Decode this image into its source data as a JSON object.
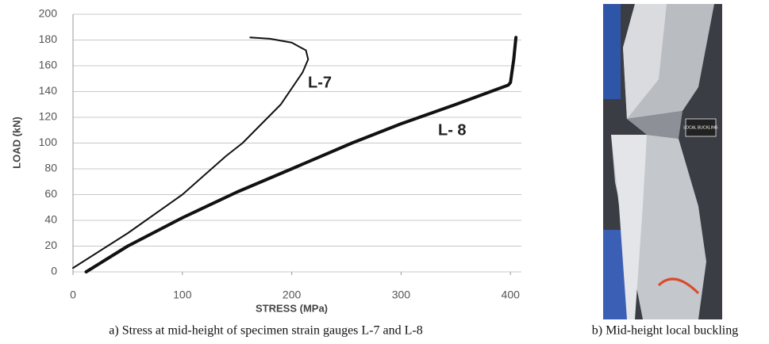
{
  "chart_data": {
    "type": "line",
    "x_label": "STRESS (MPa)",
    "y_label": "LOAD (kN)",
    "xlim": [
      0,
      410
    ],
    "xticks": [
      0,
      100,
      200,
      300,
      400
    ],
    "ylim": [
      0,
      200
    ],
    "yticks": [
      0,
      20,
      40,
      60,
      80,
      100,
      120,
      140,
      160,
      180,
      200
    ],
    "grid": true,
    "series": [
      {
        "name": "L-7",
        "color": "#111111",
        "width": 2,
        "x": [
          0,
          50,
          100,
          140,
          155,
          190,
          210,
          215,
          213,
          200,
          180,
          162
        ],
        "values": [
          3,
          30,
          60,
          90,
          100,
          130,
          155,
          165,
          172,
          178,
          181,
          182
        ]
      },
      {
        "name": "L- 8",
        "color": "#111111",
        "width": 4,
        "x": [
          12,
          50,
          100,
          150,
          200,
          255,
          300,
          350,
          398,
          400,
          403,
          405
        ],
        "values": [
          0,
          20,
          42,
          62,
          80,
          100,
          115,
          130,
          145,
          147,
          165,
          182
        ]
      }
    ]
  },
  "photo": {
    "label": "LOCAL BUCKLING"
  },
  "captions": [
    "a)  Stress at mid-height of specimen strain gauges L-7 and L-8",
    "b) Mid-height local buckling"
  ]
}
